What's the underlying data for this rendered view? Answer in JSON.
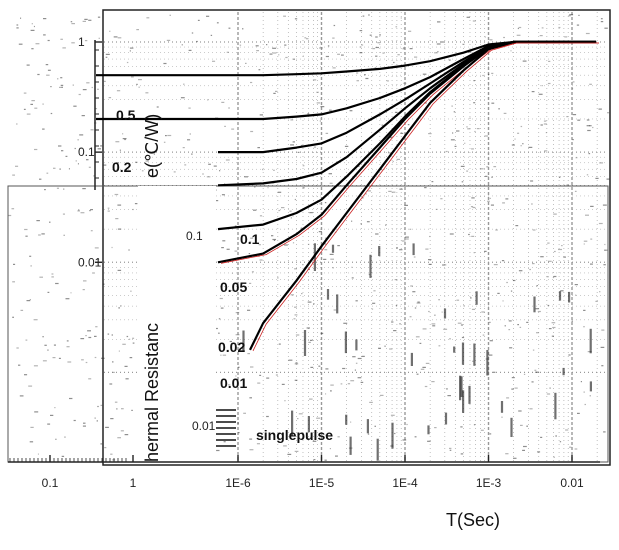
{
  "chart_data": {
    "type": "line",
    "xlabel": "T(Sec)",
    "ylabel": "hermal Resistanc",
    "ylabel_unit": "e(℃/W)",
    "x_tick_labels_main": [
      "1E-6",
      "1E-5",
      "1E-4",
      "1E-3",
      "0.01"
    ],
    "x_tick_labels_left": [
      "0.1",
      "1"
    ],
    "y_tick_labels": [
      "1",
      "0.1",
      "0.01"
    ],
    "grid": true,
    "xlim": [
      1e-06,
      0.02
    ],
    "ylim": [
      0.0003,
      1.4
    ],
    "x": [
      1e-06,
      2e-06,
      5e-06,
      1e-05,
      2e-05,
      5e-05,
      0.0001,
      0.0002,
      0.0005,
      0.001,
      0.002,
      0.005,
      0.01
    ],
    "series": [
      {
        "label": "0.5",
        "values": [
          0.5,
          0.5,
          0.51,
          0.52,
          0.54,
          0.57,
          0.61,
          0.67,
          0.8,
          0.95,
          1.0,
          1.0,
          1.0
        ]
      },
      {
        "label": "0.2",
        "values": [
          0.2,
          0.2,
          0.21,
          0.22,
          0.25,
          0.31,
          0.38,
          0.48,
          0.7,
          0.92,
          1.0,
          1.0,
          1.0
        ]
      },
      {
        "label": "0.1",
        "values": [
          0.1,
          0.1,
          0.11,
          0.12,
          0.15,
          0.22,
          0.3,
          0.42,
          0.66,
          0.9,
          1.0,
          1.0,
          1.0
        ]
      },
      {
        "label": "0.05",
        "values": [
          0.05,
          0.052,
          0.057,
          0.065,
          0.09,
          0.16,
          0.25,
          0.38,
          0.63,
          0.89,
          1.0,
          1.0,
          1.0
        ]
      },
      {
        "label": "0.02",
        "values": [
          0.02,
          0.022,
          0.028,
          0.037,
          0.06,
          0.12,
          0.21,
          0.35,
          0.61,
          0.88,
          1.0,
          1.0,
          1.0
        ]
      },
      {
        "label": "0.01",
        "values": [
          0.01,
          0.012,
          0.018,
          0.027,
          0.05,
          0.11,
          0.2,
          0.34,
          0.6,
          0.88,
          1.0,
          1.0,
          1.0
        ]
      },
      {
        "label": "singlepulse",
        "values": [
          0.0016,
          0.0028,
          0.0068,
          0.014,
          0.028,
          0.07,
          0.14,
          0.28,
          0.55,
          0.86,
          1.0,
          1.0,
          1.0
        ]
      }
    ],
    "extra_labels": [
      "0.1",
      "0.01"
    ],
    "colors": {
      "curve": "#000000",
      "red_curve": "#cc2222",
      "grid": "#999999"
    }
  }
}
